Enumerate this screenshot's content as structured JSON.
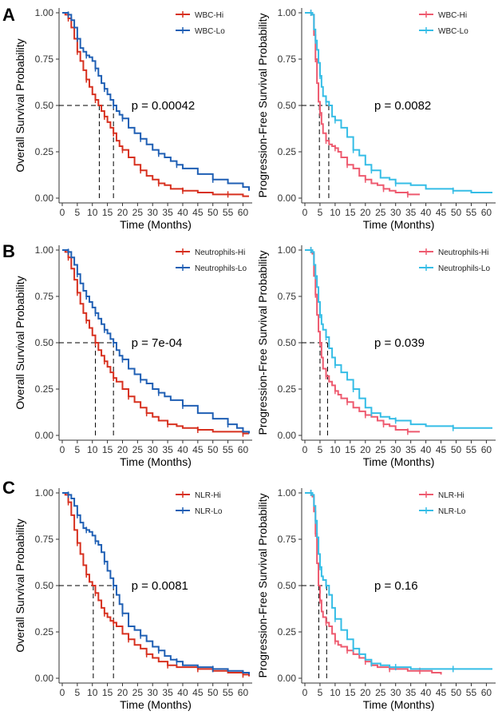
{
  "colors": {
    "hi_os": "#D7301F",
    "lo_os": "#1F5FB4",
    "hi_pfs": "#EE5A6F",
    "lo_pfs": "#35BDE6"
  },
  "chart_data": [
    {
      "type": "line",
      "panel": "A",
      "title": "",
      "xlabel": "Time (Months)",
      "ylabel": "Overall Survival Probability",
      "xlim": [
        0,
        62
      ],
      "ylim": [
        0,
        1
      ],
      "xticks": [
        "0",
        "5",
        "10",
        "15",
        "20",
        "25",
        "30",
        "35",
        "40",
        "45",
        "50",
        "55",
        "60"
      ],
      "yticks": [
        "0.00",
        "0.25",
        "0.50",
        "0.75",
        "1.00"
      ],
      "legend": [
        "WBC-Hi",
        "WBC-Lo"
      ],
      "legend_position": "top-right",
      "p_value": "p = 0.00042",
      "medians": [
        12.3,
        17.0
      ],
      "series": [
        {
          "name": "WBC-Hi",
          "color_key": "hi_os",
          "x": [
            0,
            1,
            2,
            3,
            4,
            5,
            6,
            7,
            8,
            9,
            10,
            11,
            12,
            13,
            14,
            15,
            16,
            17,
            18,
            19,
            20,
            22,
            24,
            26,
            28,
            30,
            32,
            34,
            36,
            40,
            45,
            50,
            55,
            60,
            62
          ],
          "y": [
            1,
            0.99,
            0.97,
            0.92,
            0.86,
            0.79,
            0.74,
            0.69,
            0.64,
            0.6,
            0.56,
            0.53,
            0.5,
            0.47,
            0.44,
            0.41,
            0.38,
            0.35,
            0.31,
            0.28,
            0.26,
            0.22,
            0.18,
            0.15,
            0.12,
            0.1,
            0.08,
            0.07,
            0.05,
            0.04,
            0.03,
            0.02,
            0.02,
            0.01,
            0.01
          ]
        },
        {
          "name": "WBC-Lo",
          "color_key": "lo_os",
          "x": [
            0,
            1,
            2,
            3,
            4,
            5,
            6,
            7,
            8,
            9,
            10,
            11,
            12,
            13,
            14,
            15,
            16,
            17,
            18,
            19,
            20,
            22,
            24,
            26,
            28,
            30,
            32,
            34,
            36,
            38,
            40,
            45,
            50,
            55,
            60,
            62
          ],
          "y": [
            1,
            1,
            0.99,
            0.96,
            0.92,
            0.86,
            0.81,
            0.79,
            0.77,
            0.76,
            0.74,
            0.7,
            0.66,
            0.62,
            0.59,
            0.56,
            0.53,
            0.5,
            0.47,
            0.45,
            0.43,
            0.38,
            0.35,
            0.32,
            0.29,
            0.26,
            0.24,
            0.22,
            0.2,
            0.18,
            0.16,
            0.13,
            0.1,
            0.08,
            0.06,
            0.04
          ]
        }
      ]
    },
    {
      "type": "line",
      "panel": "A",
      "title": "",
      "xlabel": "Time (Months)",
      "ylabel": "Progression-Free Survival Probability",
      "xlim": [
        0,
        62
      ],
      "ylim": [
        0,
        1
      ],
      "xticks": [
        "0",
        "5",
        "10",
        "15",
        "20",
        "25",
        "30",
        "35",
        "40",
        "45",
        "50",
        "55",
        "60"
      ],
      "yticks": [
        "0.00",
        "0.25",
        "0.50",
        "0.75",
        "1.00"
      ],
      "legend": [
        "WBC-Hi",
        "WBC-Lo"
      ],
      "legend_position": "top-right",
      "p_value": "p = 0.0082",
      "medians": [
        4.8,
        7.9
      ],
      "series": [
        {
          "name": "WBC-Hi",
          "color_key": "hi_pfs",
          "x": [
            0,
            1,
            2,
            2.5,
            3,
            3.5,
            4,
            4.5,
            5,
            5.5,
            6,
            7,
            8,
            9,
            10,
            11,
            12,
            14,
            16,
            18,
            20,
            22,
            24,
            26,
            28,
            30,
            34,
            38
          ],
          "y": [
            1,
            1,
            1,
            0.99,
            0.88,
            0.75,
            0.62,
            0.52,
            0.46,
            0.4,
            0.35,
            0.31,
            0.29,
            0.28,
            0.27,
            0.25,
            0.22,
            0.18,
            0.16,
            0.12,
            0.1,
            0.08,
            0.07,
            0.05,
            0.04,
            0.03,
            0.02,
            0.02
          ]
        },
        {
          "name": "WBC-Lo",
          "color_key": "lo_pfs",
          "x": [
            0,
            1,
            2,
            2.5,
            3,
            3.5,
            4,
            4.5,
            5,
            5.5,
            6,
            7,
            8,
            9,
            10,
            12,
            14,
            16,
            18,
            20,
            22,
            25,
            28,
            30,
            35,
            40,
            49,
            55,
            62
          ],
          "y": [
            1,
            1,
            1,
            0.99,
            0.91,
            0.85,
            0.8,
            0.73,
            0.66,
            0.6,
            0.55,
            0.52,
            0.5,
            0.44,
            0.42,
            0.38,
            0.33,
            0.26,
            0.23,
            0.18,
            0.15,
            0.11,
            0.1,
            0.08,
            0.07,
            0.05,
            0.04,
            0.03,
            0.03
          ]
        }
      ]
    },
    {
      "type": "line",
      "panel": "B",
      "title": "",
      "xlabel": "Time (Months)",
      "ylabel": "Overall Survival Probability",
      "xlim": [
        0,
        62
      ],
      "ylim": [
        0,
        1
      ],
      "xticks": [
        "0",
        "5",
        "10",
        "15",
        "20",
        "25",
        "30",
        "35",
        "40",
        "45",
        "50",
        "55",
        "60"
      ],
      "yticks": [
        "0.00",
        "0.25",
        "0.50",
        "0.75",
        "1.00"
      ],
      "legend": [
        "Neutrophils-Hi",
        "Neutrophils-Lo"
      ],
      "legend_position": "top-right",
      "p_value": "p = 7e-04",
      "medians": [
        11.0,
        17.0
      ],
      "series": [
        {
          "name": "Neutrophils-Hi",
          "color_key": "hi_os",
          "x": [
            0,
            1,
            2,
            3,
            4,
            5,
            6,
            7,
            8,
            9,
            10,
            11,
            12,
            13,
            14,
            15,
            16,
            17,
            18,
            20,
            22,
            24,
            26,
            28,
            30,
            32,
            35,
            38,
            40,
            45,
            50,
            55,
            60,
            62
          ],
          "y": [
            1,
            0.99,
            0.96,
            0.9,
            0.84,
            0.77,
            0.71,
            0.66,
            0.62,
            0.58,
            0.54,
            0.5,
            0.46,
            0.43,
            0.4,
            0.37,
            0.34,
            0.31,
            0.29,
            0.25,
            0.21,
            0.18,
            0.15,
            0.12,
            0.1,
            0.08,
            0.06,
            0.05,
            0.04,
            0.03,
            0.02,
            0.02,
            0.01,
            0.01
          ]
        },
        {
          "name": "Neutrophils-Lo",
          "color_key": "lo_os",
          "x": [
            0,
            1,
            2,
            3,
            4,
            5,
            6,
            7,
            8,
            9,
            10,
            11,
            12,
            13,
            14,
            15,
            16,
            17,
            18,
            19,
            20,
            22,
            24,
            26,
            28,
            30,
            32,
            34,
            36,
            40,
            45,
            50,
            55,
            58,
            60,
            62
          ],
          "y": [
            1,
            1,
            0.99,
            0.96,
            0.92,
            0.87,
            0.82,
            0.78,
            0.75,
            0.72,
            0.69,
            0.66,
            0.63,
            0.6,
            0.57,
            0.55,
            0.52,
            0.5,
            0.46,
            0.43,
            0.41,
            0.36,
            0.33,
            0.3,
            0.28,
            0.25,
            0.23,
            0.21,
            0.19,
            0.16,
            0.12,
            0.09,
            0.06,
            0.04,
            0.02,
            0.01
          ]
        }
      ]
    },
    {
      "type": "line",
      "panel": "B",
      "title": "",
      "xlabel": "Time (Months)",
      "ylabel": "Progression-Free Survival Probability",
      "xlim": [
        0,
        62
      ],
      "ylim": [
        0,
        1
      ],
      "xticks": [
        "0",
        "5",
        "10",
        "15",
        "20",
        "25",
        "30",
        "35",
        "40",
        "45",
        "50",
        "55",
        "60"
      ],
      "yticks": [
        "0.00",
        "0.25",
        "0.50",
        "0.75",
        "1.00"
      ],
      "legend": [
        "Neutrophils-Hi",
        "Neutrophils-Lo"
      ],
      "legend_position": "top-right",
      "p_value": "p = 0.039",
      "medians": [
        5.0,
        7.5
      ],
      "series": [
        {
          "name": "Neutrophils-Hi",
          "color_key": "hi_pfs",
          "x": [
            0,
            1,
            2,
            2.5,
            3,
            3.5,
            4,
            4.5,
            5,
            5.5,
            6,
            7,
            8,
            9,
            10,
            11,
            12,
            14,
            16,
            18,
            20,
            22,
            24,
            26,
            28,
            30,
            34,
            38
          ],
          "y": [
            1,
            1,
            1,
            0.98,
            0.86,
            0.76,
            0.65,
            0.56,
            0.5,
            0.42,
            0.36,
            0.32,
            0.29,
            0.27,
            0.24,
            0.22,
            0.2,
            0.18,
            0.15,
            0.13,
            0.11,
            0.1,
            0.08,
            0.06,
            0.05,
            0.03,
            0.02,
            0.02
          ]
        },
        {
          "name": "Neutrophils-Lo",
          "color_key": "lo_pfs",
          "x": [
            0,
            1,
            2,
            2.5,
            3,
            3.5,
            4,
            4.5,
            5,
            5.5,
            6,
            7,
            8,
            9,
            10,
            12,
            14,
            16,
            18,
            20,
            22,
            25,
            28,
            30,
            35,
            40,
            49,
            55,
            62
          ],
          "y": [
            1,
            1,
            1,
            0.99,
            0.92,
            0.86,
            0.8,
            0.72,
            0.65,
            0.6,
            0.57,
            0.53,
            0.47,
            0.42,
            0.38,
            0.34,
            0.3,
            0.25,
            0.2,
            0.15,
            0.12,
            0.1,
            0.09,
            0.08,
            0.06,
            0.05,
            0.04,
            0.04,
            0.04
          ]
        }
      ]
    },
    {
      "type": "line",
      "panel": "C",
      "title": "",
      "xlabel": "Time (Months)",
      "ylabel": "Overall Survival Probability",
      "xlim": [
        0,
        62
      ],
      "ylim": [
        0,
        1
      ],
      "xticks": [
        "0",
        "5",
        "10",
        "15",
        "20",
        "25",
        "30",
        "35",
        "40",
        "45",
        "50",
        "55",
        "60"
      ],
      "yticks": [
        "0.00",
        "0.25",
        "0.50",
        "0.75",
        "1.00"
      ],
      "legend": [
        "NLR-Hi",
        "NLR-Lo"
      ],
      "legend_position": "top-right",
      "p_value": "p = 0.0081",
      "medians": [
        10.3,
        17.0
      ],
      "series": [
        {
          "name": "NLR-Hi",
          "color_key": "hi_os",
          "x": [
            0,
            1,
            2,
            3,
            4,
            5,
            6,
            7,
            8,
            9,
            10,
            11,
            12,
            13,
            14,
            15,
            16,
            17,
            18,
            20,
            22,
            24,
            26,
            28,
            30,
            32,
            35,
            38,
            40,
            45,
            50,
            55,
            60,
            62
          ],
          "y": [
            1,
            0.99,
            0.95,
            0.88,
            0.8,
            0.73,
            0.67,
            0.61,
            0.56,
            0.52,
            0.5,
            0.46,
            0.42,
            0.38,
            0.35,
            0.33,
            0.31,
            0.3,
            0.28,
            0.24,
            0.21,
            0.18,
            0.16,
            0.13,
            0.11,
            0.09,
            0.07,
            0.06,
            0.06,
            0.05,
            0.04,
            0.03,
            0.02,
            0.01
          ]
        },
        {
          "name": "NLR-Lo",
          "color_key": "lo_os",
          "x": [
            0,
            1,
            2,
            3,
            4,
            5,
            6,
            7,
            8,
            9,
            10,
            11,
            12,
            13,
            14,
            15,
            16,
            17,
            18,
            19,
            20,
            22,
            24,
            26,
            28,
            30,
            32,
            34,
            36,
            38,
            40,
            45,
            50,
            55,
            60,
            62
          ],
          "y": [
            1,
            1,
            0.99,
            0.97,
            0.93,
            0.88,
            0.84,
            0.81,
            0.8,
            0.79,
            0.77,
            0.74,
            0.72,
            0.68,
            0.63,
            0.58,
            0.54,
            0.5,
            0.45,
            0.4,
            0.35,
            0.28,
            0.26,
            0.23,
            0.2,
            0.17,
            0.15,
            0.12,
            0.1,
            0.09,
            0.07,
            0.06,
            0.05,
            0.04,
            0.03,
            0.02
          ]
        }
      ]
    },
    {
      "type": "line",
      "panel": "C",
      "title": "",
      "xlabel": "Time (Months)",
      "ylabel": "Progression-Free Survival Probability",
      "xlim": [
        0,
        62
      ],
      "ylim": [
        0,
        1
      ],
      "xticks": [
        "0",
        "5",
        "10",
        "15",
        "20",
        "25",
        "30",
        "35",
        "40",
        "45",
        "50",
        "55",
        "60"
      ],
      "yticks": [
        "0.00",
        "0.25",
        "0.50",
        "0.75",
        "1.00"
      ],
      "legend": [
        "NLR-Hi",
        "NLR-Lo"
      ],
      "legend_position": "top-right",
      "p_value": "p = 0.16",
      "medians": [
        4.6,
        7.2
      ],
      "series": [
        {
          "name": "NLR-Hi",
          "color_key": "hi_pfs",
          "x": [
            0,
            1,
            2,
            2.5,
            3,
            3.5,
            4,
            4.5,
            5,
            5.5,
            6,
            7,
            8,
            9,
            10,
            11,
            12,
            14,
            16,
            18,
            20,
            22,
            24,
            28,
            30,
            34,
            38,
            42,
            45
          ],
          "y": [
            1,
            1,
            1,
            0.98,
            0.9,
            0.78,
            0.62,
            0.5,
            0.42,
            0.36,
            0.33,
            0.3,
            0.28,
            0.24,
            0.2,
            0.18,
            0.17,
            0.15,
            0.13,
            0.11,
            0.09,
            0.07,
            0.06,
            0.05,
            0.05,
            0.04,
            0.04,
            0.03,
            0.02
          ]
        },
        {
          "name": "NLR-Lo",
          "color_key": "lo_pfs",
          "x": [
            0,
            1,
            2,
            2.5,
            3,
            3.5,
            4,
            4.5,
            5,
            5.5,
            6,
            7,
            8,
            9,
            10,
            12,
            14,
            16,
            18,
            20,
            22,
            25,
            28,
            30,
            35,
            40,
            49,
            55,
            62
          ],
          "y": [
            1,
            1,
            1,
            0.99,
            0.93,
            0.85,
            0.76,
            0.67,
            0.6,
            0.55,
            0.53,
            0.5,
            0.45,
            0.38,
            0.32,
            0.26,
            0.21,
            0.16,
            0.13,
            0.1,
            0.08,
            0.07,
            0.06,
            0.06,
            0.05,
            0.05,
            0.05,
            0.05,
            0.05
          ]
        }
      ]
    }
  ]
}
